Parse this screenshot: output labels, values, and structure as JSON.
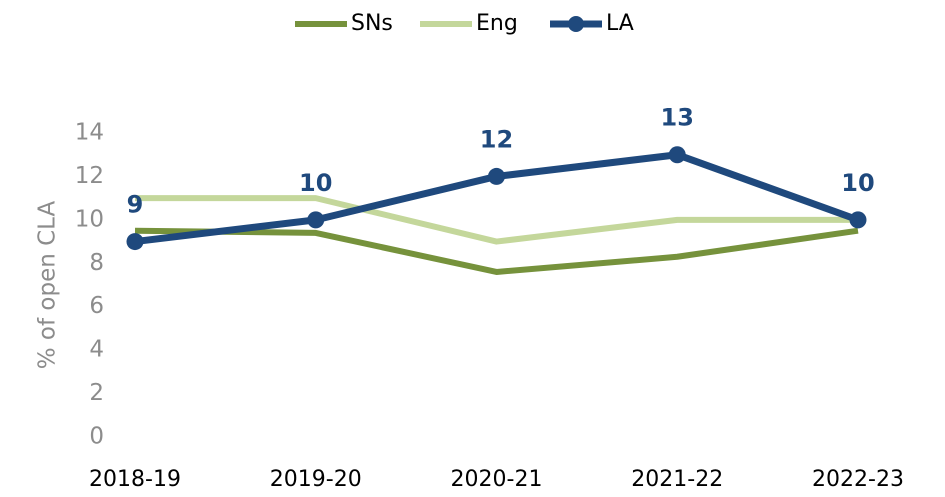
{
  "chart_data": {
    "type": "line",
    "y_label": "% of open CLA",
    "categories": [
      "2018-19",
      "2019-20",
      "2020-21",
      "2021-22",
      "2022-23"
    ],
    "series": [
      {
        "name": "SNs",
        "color": "#76923c",
        "values": [
          9.5,
          9.4,
          7.6,
          8.3,
          9.5
        ]
      },
      {
        "name": "Eng",
        "color": "#c4d79b",
        "values": [
          11,
          11,
          9,
          10,
          10
        ]
      },
      {
        "name": "LA",
        "color": "#1f497d",
        "values": [
          9,
          10,
          12,
          13,
          10
        ],
        "markers": true,
        "data_labels": true
      }
    ],
    "ylim": [
      0,
      14
    ],
    "yticks": [
      0,
      2,
      4,
      6,
      8,
      10,
      12,
      14
    ],
    "grid": false,
    "legend": "top"
  }
}
